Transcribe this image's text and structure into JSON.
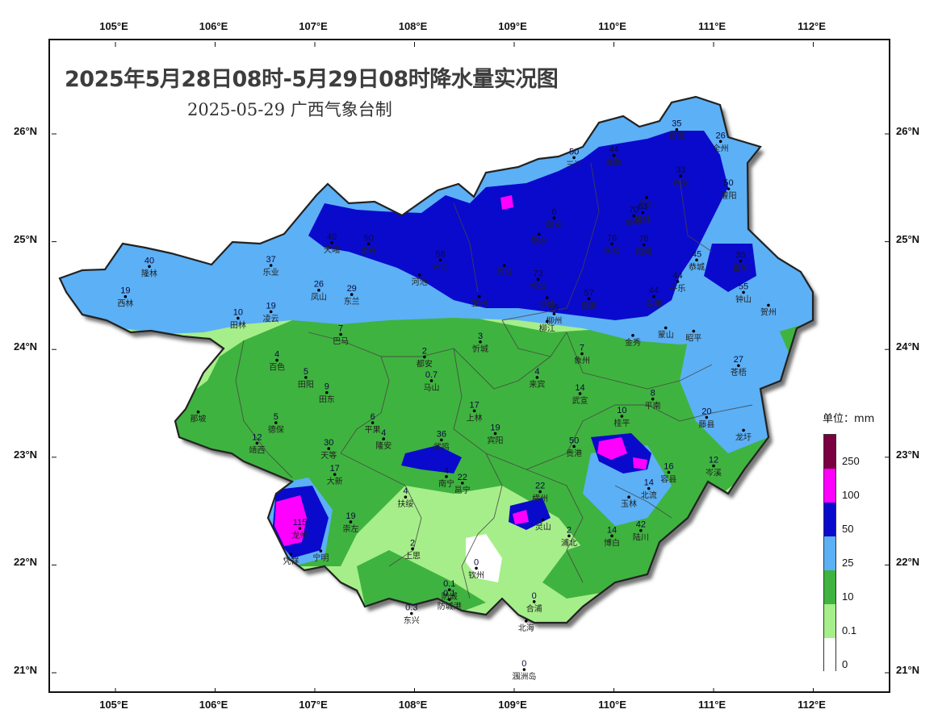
{
  "title": "2025年5月28日08时-5月29日08时降水量实况图",
  "subtitle": "2025-05-29  广西气象台制",
  "lon_ticks": [
    "105°E",
    "106°E",
    "107°E",
    "108°E",
    "109°E",
    "110°E",
    "111°E",
    "112°E"
  ],
  "lat_ticks": [
    "26°N",
    "25°N",
    "24°N",
    "23°N",
    "22°N",
    "21°N"
  ],
  "legend": {
    "unit": "单位：mm",
    "levels": [
      {
        "label": "250",
        "color": "#7a0040"
      },
      {
        "label": "100",
        "color": "#ff00ff"
      },
      {
        "label": "50",
        "color": "#0a0acc"
      },
      {
        "label": "25",
        "color": "#5cb0f5"
      },
      {
        "label": "10",
        "color": "#3fb33f"
      },
      {
        "label": "0.1",
        "color": "#a6ee8a"
      },
      {
        "label": "0",
        "color": "#ffffff"
      }
    ]
  },
  "stations": [
    {
      "name": "资源",
      "value": "35",
      "lon": 110.63,
      "lat": 26.04
    },
    {
      "name": "全州",
      "value": "26",
      "lon": 111.07,
      "lat": 25.93
    },
    {
      "name": "龙胜",
      "value": "44",
      "lon": 110.0,
      "lat": 25.8
    },
    {
      "name": "兴安",
      "value": "33",
      "lon": 110.67,
      "lat": 25.61
    },
    {
      "name": "三江",
      "value": "50",
      "lon": 109.6,
      "lat": 25.78
    },
    {
      "name": "灌阳",
      "value": "50",
      "lon": 111.15,
      "lat": 25.49
    },
    {
      "name": "灵川",
      "value": "",
      "lon": 110.33,
      "lat": 25.41
    },
    {
      "name": "桂林",
      "value": "63",
      "lon": 110.29,
      "lat": 25.27
    },
    {
      "name": "融安",
      "value": "6",
      "lon": 109.4,
      "lat": 25.22
    },
    {
      "name": "融水",
      "value": "",
      "lon": 109.25,
      "lat": 25.07
    },
    {
      "name": "临桂",
      "value": "70",
      "lon": 110.2,
      "lat": 25.24
    },
    {
      "name": "阳朔",
      "value": "76",
      "lon": 110.3,
      "lat": 24.97
    },
    {
      "name": "永福",
      "value": "76",
      "lon": 109.98,
      "lat": 24.98
    },
    {
      "name": "富川",
      "value": "35",
      "lon": 111.27,
      "lat": 24.82
    },
    {
      "name": "恭城",
      "value": "45",
      "lon": 110.83,
      "lat": 24.83
    },
    {
      "name": "乐业",
      "value": "37",
      "lon": 106.56,
      "lat": 24.78
    },
    {
      "name": "隆林",
      "value": "40",
      "lon": 105.34,
      "lat": 24.77
    },
    {
      "name": "天峨",
      "value": "40",
      "lon": 107.17,
      "lat": 24.99
    },
    {
      "name": "南丹",
      "value": "50",
      "lon": 107.54,
      "lat": 24.98
    },
    {
      "name": "环江",
      "value": "58",
      "lon": 108.26,
      "lat": 24.83
    },
    {
      "name": "罗城",
      "value": "",
      "lon": 108.9,
      "lat": 24.78
    },
    {
      "name": "河池",
      "value": "",
      "lon": 108.05,
      "lat": 24.69
    },
    {
      "name": "柳城",
      "value": "73",
      "lon": 109.24,
      "lat": 24.65
    },
    {
      "name": "平乐",
      "value": "44",
      "lon": 110.64,
      "lat": 24.63
    },
    {
      "name": "荔浦",
      "value": "44",
      "lon": 110.4,
      "lat": 24.49
    },
    {
      "name": "钟山",
      "value": "55",
      "lon": 111.3,
      "lat": 24.53
    },
    {
      "name": "贺州",
      "value": "",
      "lon": 111.55,
      "lat": 24.41
    },
    {
      "name": "西林",
      "value": "19",
      "lon": 105.1,
      "lat": 24.49
    },
    {
      "name": "凤山",
      "value": "26",
      "lon": 107.04,
      "lat": 24.55
    },
    {
      "name": "东兰",
      "value": "29",
      "lon": 107.37,
      "lat": 24.51
    },
    {
      "name": "宜州",
      "value": "",
      "lon": 108.65,
      "lat": 24.49
    },
    {
      "name": "柳州",
      "value": "55",
      "lon": 109.4,
      "lat": 24.33
    },
    {
      "name": "沙塘",
      "value": "",
      "lon": 109.33,
      "lat": 24.48
    },
    {
      "name": "鹿寨",
      "value": "57",
      "lon": 109.75,
      "lat": 24.47
    },
    {
      "name": "蒙山",
      "value": "",
      "lon": 110.52,
      "lat": 24.2
    },
    {
      "name": "昭平",
      "value": "",
      "lon": 110.8,
      "lat": 24.17
    },
    {
      "name": "田林",
      "value": "10",
      "lon": 106.23,
      "lat": 24.29
    },
    {
      "name": "凌云",
      "value": "19",
      "lon": 106.56,
      "lat": 24.35
    },
    {
      "name": "巴马",
      "value": "7",
      "lon": 107.26,
      "lat": 24.14
    },
    {
      "name": "忻城",
      "value": "3",
      "lon": 108.66,
      "lat": 24.07
    },
    {
      "name": "柳江",
      "value": "",
      "lon": 109.33,
      "lat": 24.26
    },
    {
      "name": "金秀",
      "value": "",
      "lon": 110.19,
      "lat": 24.13
    },
    {
      "name": "象州",
      "value": "7",
      "lon": 109.68,
      "lat": 23.96
    },
    {
      "name": "百色",
      "value": "4",
      "lon": 106.62,
      "lat": 23.9
    },
    {
      "name": "都安",
      "value": "2",
      "lon": 108.1,
      "lat": 23.93
    },
    {
      "name": "马山",
      "value": "0.7",
      "lon": 108.17,
      "lat": 23.71
    },
    {
      "name": "田阳",
      "value": "5",
      "lon": 106.91,
      "lat": 23.74
    },
    {
      "name": "田东",
      "value": "9",
      "lon": 107.12,
      "lat": 23.6
    },
    {
      "name": "来宾",
      "value": "4",
      "lon": 109.23,
      "lat": 23.74
    },
    {
      "name": "苍梧",
      "value": "27",
      "lon": 111.25,
      "lat": 23.85
    },
    {
      "name": "武宣",
      "value": "14",
      "lon": 109.66,
      "lat": 23.59
    },
    {
      "name": "平南",
      "value": "8",
      "lon": 110.39,
      "lat": 23.54
    },
    {
      "name": "藤县",
      "value": "20",
      "lon": 110.93,
      "lat": 23.37
    },
    {
      "name": "岑溪",
      "value": "12",
      "lon": 111.0,
      "lat": 22.92
    },
    {
      "name": "龙圩",
      "value": "",
      "lon": 111.3,
      "lat": 23.25
    },
    {
      "name": "那坡",
      "value": "",
      "lon": 105.83,
      "lat": 23.42
    },
    {
      "name": "德保",
      "value": "5",
      "lon": 106.61,
      "lat": 23.32
    },
    {
      "name": "平果",
      "value": "6",
      "lon": 107.58,
      "lat": 23.32
    },
    {
      "name": "上林",
      "value": "17",
      "lon": 108.6,
      "lat": 23.43
    },
    {
      "name": "宾阳",
      "value": "19",
      "lon": 108.81,
      "lat": 23.22
    },
    {
      "name": "桂平",
      "value": "10",
      "lon": 110.08,
      "lat": 23.38
    },
    {
      "name": "隆安",
      "value": "4",
      "lon": 107.69,
      "lat": 23.17
    },
    {
      "name": "武鸣",
      "value": "36",
      "lon": 108.27,
      "lat": 23.16
    },
    {
      "name": "靖西",
      "value": "12",
      "lon": 106.42,
      "lat": 23.13
    },
    {
      "name": "天等",
      "value": "30",
      "lon": 107.14,
      "lat": 23.08
    },
    {
      "name": "贵港",
      "value": "50",
      "lon": 109.6,
      "lat": 23.1
    },
    {
      "name": "大新",
      "value": "17",
      "lon": 107.2,
      "lat": 22.84
    },
    {
      "name": "邕宁",
      "value": "22",
      "lon": 108.48,
      "lat": 22.76
    },
    {
      "name": "南宁",
      "value": "4",
      "lon": 108.32,
      "lat": 22.82
    },
    {
      "name": "横州",
      "value": "22",
      "lon": 109.26,
      "lat": 22.68
    },
    {
      "name": "容县",
      "value": "16",
      "lon": 110.55,
      "lat": 22.86
    },
    {
      "name": "玉林",
      "value": "",
      "lon": 110.15,
      "lat": 22.63
    },
    {
      "name": "北流",
      "value": "14",
      "lon": 110.35,
      "lat": 22.71
    },
    {
      "name": "扶绥",
      "value": "4",
      "lon": 107.91,
      "lat": 22.63
    },
    {
      "name": "灵山",
      "value": "",
      "lon": 109.29,
      "lat": 22.42
    },
    {
      "name": "龙州",
      "value": "115",
      "lon": 106.85,
      "lat": 22.34
    },
    {
      "name": "崇左",
      "value": "19",
      "lon": 107.36,
      "lat": 22.4
    },
    {
      "name": "浦北",
      "value": "2",
      "lon": 109.55,
      "lat": 22.27
    },
    {
      "name": "博白",
      "value": "14",
      "lon": 109.98,
      "lat": 22.27
    },
    {
      "name": "陆川",
      "value": "42",
      "lon": 110.27,
      "lat": 22.32
    },
    {
      "name": "上思",
      "value": "2",
      "lon": 107.98,
      "lat": 22.15
    },
    {
      "name": "凭祥",
      "value": "",
      "lon": 106.76,
      "lat": 22.1
    },
    {
      "name": "宁明",
      "value": "",
      "lon": 107.06,
      "lat": 22.13
    },
    {
      "name": "钦州",
      "value": "0",
      "lon": 108.62,
      "lat": 21.97
    },
    {
      "name": "防城",
      "value": "0.1",
      "lon": 108.35,
      "lat": 21.77
    },
    {
      "name": "防城港",
      "value": "0.1",
      "lon": 108.35,
      "lat": 21.68
    },
    {
      "name": "合浦",
      "value": "0",
      "lon": 109.2,
      "lat": 21.66
    },
    {
      "name": "东兴",
      "value": "0.3",
      "lon": 107.97,
      "lat": 21.55
    },
    {
      "name": "北海",
      "value": "",
      "lon": 109.12,
      "lat": 21.48
    },
    {
      "name": "涠洲岛",
      "value": "0",
      "lon": 109.1,
      "lat": 21.03
    }
  ]
}
